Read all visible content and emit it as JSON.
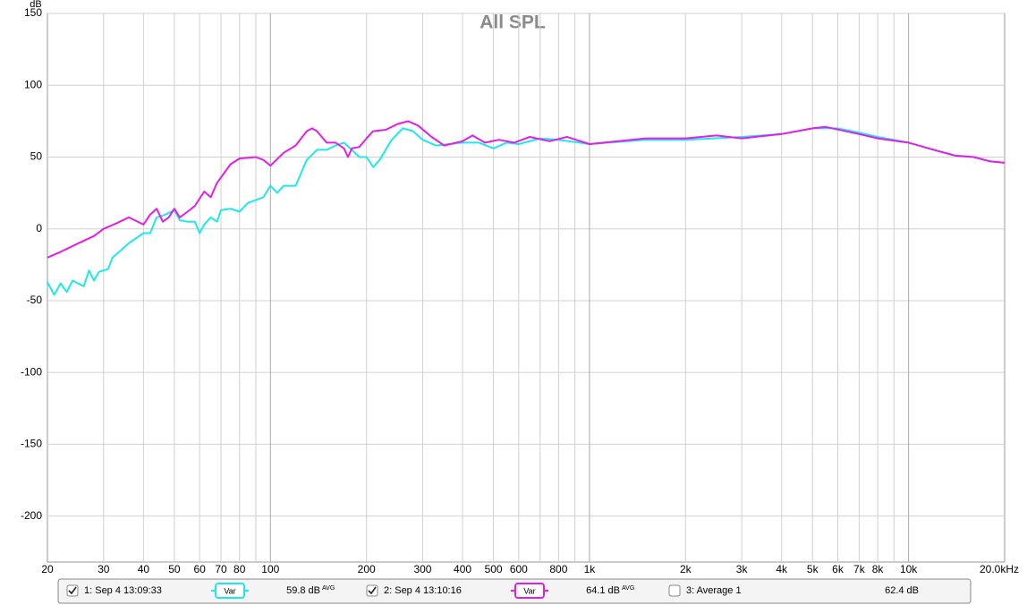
{
  "chart_data": {
    "type": "line",
    "title": "All SPL",
    "y_label": "dB",
    "log_x": true,
    "grid": true,
    "xlim": [
      20,
      20000
    ],
    "ylim": [
      -232,
      150
    ],
    "xticks": [
      20,
      30,
      40,
      50,
      60,
      70,
      80,
      100,
      200,
      300,
      400,
      500,
      600,
      800,
      {
        "value": 1000,
        "label": "1k"
      },
      {
        "value": 2000,
        "label": "2k"
      },
      {
        "value": 3000,
        "label": "3k"
      },
      {
        "value": 4000,
        "label": "4k"
      },
      {
        "value": 5000,
        "label": "5k"
      },
      {
        "value": 6000,
        "label": "6k"
      },
      {
        "value": 7000,
        "label": "7k"
      },
      {
        "value": 8000,
        "label": "8k"
      },
      {
        "value": 10000,
        "label": "10k"
      },
      {
        "value": 20000,
        "label": "20.0kHz"
      }
    ],
    "minor_xticks": [
      90,
      700,
      900,
      9000
    ],
    "yticks": [
      150,
      100,
      50,
      0,
      -50,
      -100,
      -150,
      -200
    ],
    "series": [
      {
        "name": "1: Sep 4 13:09:33",
        "color": "#1ee8ec",
        "checked": true,
        "var_label": "Var",
        "level": "59.8 dB",
        "level_tag": "AVG",
        "x": [
          20,
          21,
          22,
          23,
          24,
          26,
          27,
          28,
          29,
          31,
          32,
          34,
          36,
          40,
          42,
          44,
          47,
          50,
          52,
          55,
          58,
          60,
          62,
          65,
          68,
          70,
          75,
          80,
          85,
          90,
          95,
          100,
          105,
          110,
          120,
          130,
          140,
          150,
          160,
          170,
          180,
          190,
          200,
          210,
          220,
          240,
          260,
          280,
          300,
          330,
          400,
          450,
          500,
          550,
          600,
          700,
          800,
          1000,
          1500,
          2000,
          3000,
          4000,
          5000,
          6000,
          7000,
          8000,
          10000,
          12000,
          14000,
          16000,
          18000,
          20000
        ],
        "values": [
          -37,
          -46,
          -38,
          -44,
          -36,
          -40,
          -29,
          -36,
          -30,
          -28,
          -20,
          -15,
          -10,
          -3,
          -3,
          8,
          10,
          13,
          6,
          5,
          5,
          -3,
          3,
          8,
          5,
          13,
          14,
          12,
          18,
          20,
          22,
          30,
          25,
          30,
          30,
          48,
          55,
          55,
          58,
          60,
          55,
          50,
          50,
          43,
          48,
          62,
          70,
          68,
          62,
          58,
          60,
          60,
          56,
          60,
          59,
          63,
          62,
          59,
          62,
          62,
          64,
          66,
          70,
          70,
          67,
          64,
          60,
          55,
          51,
          50,
          47,
          46
        ]
      },
      {
        "name": "2: Sep 4 13:10:16",
        "color": "#e41ee4",
        "checked": true,
        "var_label": "Var",
        "level": "64.1 dB",
        "level_tag": "AVG",
        "x": [
          20,
          22,
          25,
          28,
          30,
          33,
          36,
          40,
          42,
          44,
          46,
          48,
          50,
          52,
          55,
          58,
          62,
          65,
          68,
          75,
          80,
          90,
          95,
          100,
          110,
          120,
          130,
          135,
          140,
          150,
          160,
          170,
          175,
          180,
          190,
          200,
          210,
          230,
          250,
          270,
          290,
          320,
          350,
          400,
          430,
          470,
          520,
          580,
          650,
          750,
          850,
          1000,
          1500,
          2000,
          2500,
          3000,
          4000,
          5000,
          5500,
          7000,
          8000,
          10000,
          12000,
          14000,
          16000,
          18000,
          20000
        ],
        "values": [
          -20,
          -16,
          -10,
          -5,
          0,
          4,
          8,
          3,
          10,
          14,
          5,
          8,
          14,
          8,
          12,
          16,
          26,
          22,
          32,
          45,
          49,
          50,
          48,
          44,
          53,
          58,
          68,
          70,
          68,
          60,
          60,
          56,
          50,
          56,
          57,
          63,
          68,
          69,
          73,
          75,
          72,
          64,
          58,
          61,
          65,
          60,
          62,
          60,
          64,
          61,
          64,
          59,
          63,
          63,
          65,
          63,
          66,
          70,
          71,
          66,
          63,
          60,
          55,
          51,
          50,
          47,
          46
        ]
      }
    ],
    "legend_extra": {
      "name": "3: Average 1",
      "color": "#d4e43a",
      "checked": false,
      "level": "62.4 dB"
    }
  }
}
